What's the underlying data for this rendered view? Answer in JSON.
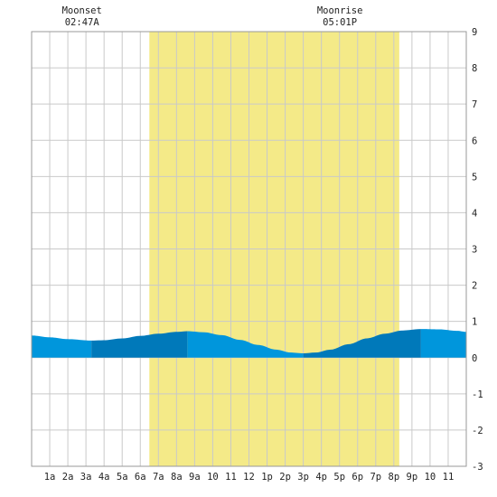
{
  "chart_data": {
    "type": "area",
    "title": "",
    "xlabel": "",
    "ylabel": "",
    "xlim": [
      0,
      24
    ],
    "ylim": [
      -3,
      9
    ],
    "grid": true,
    "y_ticks": [
      -3,
      -2,
      -1,
      0,
      1,
      2,
      3,
      4,
      5,
      6,
      7,
      8,
      9
    ],
    "x_ticks": [
      {
        "hour": 1,
        "label": "1a"
      },
      {
        "hour": 2,
        "label": "2a"
      },
      {
        "hour": 3,
        "label": "3a"
      },
      {
        "hour": 4,
        "label": "4a"
      },
      {
        "hour": 5,
        "label": "5a"
      },
      {
        "hour": 6,
        "label": "6a"
      },
      {
        "hour": 7,
        "label": "7a"
      },
      {
        "hour": 8,
        "label": "8a"
      },
      {
        "hour": 9,
        "label": "9a"
      },
      {
        "hour": 10,
        "label": "10"
      },
      {
        "hour": 11,
        "label": "11"
      },
      {
        "hour": 12,
        "label": "12"
      },
      {
        "hour": 13,
        "label": "1p"
      },
      {
        "hour": 14,
        "label": "2p"
      },
      {
        "hour": 15,
        "label": "3p"
      },
      {
        "hour": 16,
        "label": "4p"
      },
      {
        "hour": 17,
        "label": "5p"
      },
      {
        "hour": 18,
        "label": "6p"
      },
      {
        "hour": 19,
        "label": "7p"
      },
      {
        "hour": 20,
        "label": "8p"
      },
      {
        "hour": 21,
        "label": "9p"
      },
      {
        "hour": 22,
        "label": "10"
      },
      {
        "hour": 23,
        "label": "11"
      }
    ],
    "daylight": {
      "start_hour": 6.5,
      "end_hour": 20.3
    },
    "extremes_hours": [
      3.3,
      8.6,
      15.0,
      21.5
    ],
    "tide_series": {
      "x": [
        0,
        1,
        2,
        3.3,
        4,
        5,
        6,
        7,
        8,
        8.6,
        9.5,
        10.5,
        11.5,
        12.5,
        13.5,
        14.3,
        15.0,
        15.7,
        16.5,
        17.5,
        18.5,
        19.5,
        20.5,
        21.5,
        22.5,
        23.5,
        24
      ],
      "y": [
        0.61,
        0.56,
        0.51,
        0.47,
        0.48,
        0.53,
        0.6,
        0.66,
        0.71,
        0.73,
        0.7,
        0.62,
        0.49,
        0.35,
        0.22,
        0.14,
        0.12,
        0.14,
        0.22,
        0.37,
        0.53,
        0.66,
        0.75,
        0.79,
        0.78,
        0.74,
        0.71
      ]
    },
    "moon_events": [
      {
        "name": "Moonset",
        "time": "02:47A",
        "hour": 2.78
      },
      {
        "name": "Moonrise",
        "time": "05:01P",
        "hour": 17.02
      }
    ],
    "colors": {
      "daylight": "#f4ea88",
      "grid": "#c9c9c9",
      "tide_light": "#0096dc",
      "tide_dark": "#0079ba",
      "background": "#ffffff",
      "frame": "#999999"
    }
  }
}
